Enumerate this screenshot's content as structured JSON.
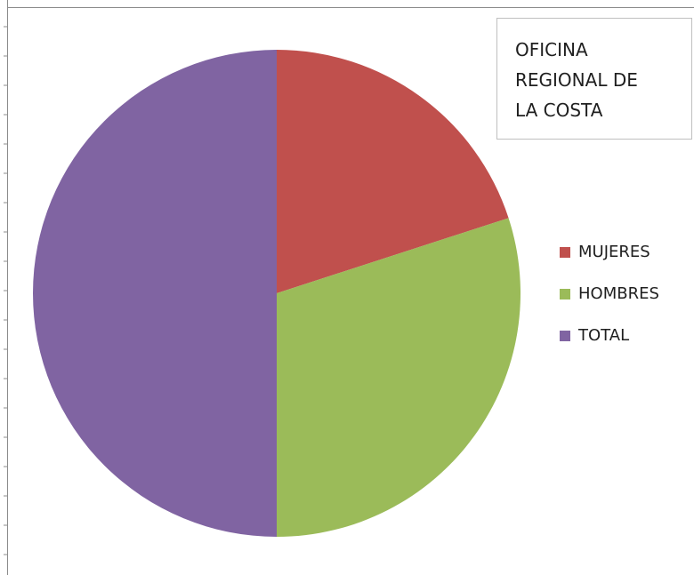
{
  "chart_data": {
    "type": "pie",
    "title": "OFICINA REGIONAL DE LA COSTA",
    "categories": [
      "MUJERES",
      "HOMBRES",
      "TOTAL"
    ],
    "values": [
      20,
      30,
      50
    ],
    "colors": [
      "#c0504d",
      "#9bbb59",
      "#8064a2"
    ],
    "legend": "right"
  }
}
